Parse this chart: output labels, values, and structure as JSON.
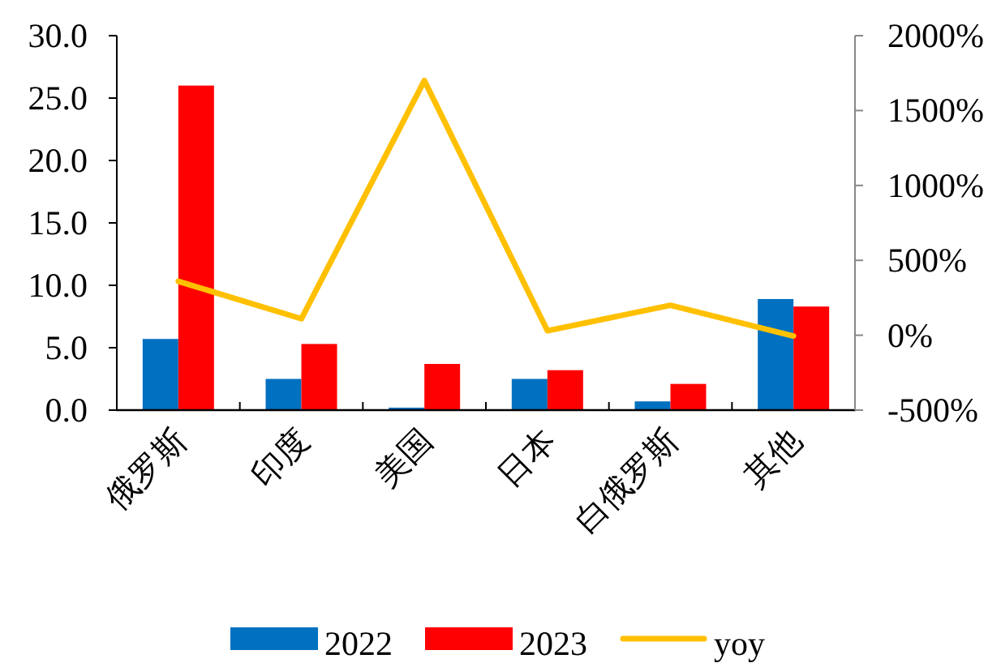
{
  "chart_data": {
    "type": "bar",
    "categories": [
      "俄罗斯",
      "印度",
      "美国",
      "日本",
      "白俄罗斯",
      "其他"
    ],
    "series": [
      {
        "name": "2022",
        "color": "#0070c0",
        "values": [
          5.7,
          2.5,
          0.2,
          2.5,
          0.7,
          8.9
        ]
      },
      {
        "name": "2023",
        "color": "#ff0000",
        "values": [
          26.0,
          5.3,
          3.7,
          3.2,
          2.1,
          8.3
        ]
      },
      {
        "name": "yoy",
        "type": "line",
        "axis": "y2",
        "color": "#ffc000",
        "values": [
          360,
          110,
          1700,
          30,
          200,
          -5
        ]
      }
    ],
    "ylim": [
      0,
      30
    ],
    "yticks": [
      {
        "value": 0,
        "label": "0.0"
      },
      {
        "value": 5,
        "label": "5.0"
      },
      {
        "value": 10,
        "label": "10.0"
      },
      {
        "value": 15,
        "label": "15.0"
      },
      {
        "value": 20,
        "label": "20.0"
      },
      {
        "value": 25,
        "label": "25.0"
      },
      {
        "value": 30,
        "label": "30.0"
      }
    ],
    "y2lim": [
      -500,
      2000
    ],
    "y2ticks": [
      {
        "value": -500,
        "label": "-500%"
      },
      {
        "value": 0,
        "label": "0%"
      },
      {
        "value": 500,
        "label": "500%"
      },
      {
        "value": 1000,
        "label": "1000%"
      },
      {
        "value": 1500,
        "label": "1500%"
      },
      {
        "value": 2000,
        "label": "2000%"
      }
    ],
    "grid": false,
    "legend": "bottom",
    "marker": "none",
    "line_style": "solid"
  }
}
